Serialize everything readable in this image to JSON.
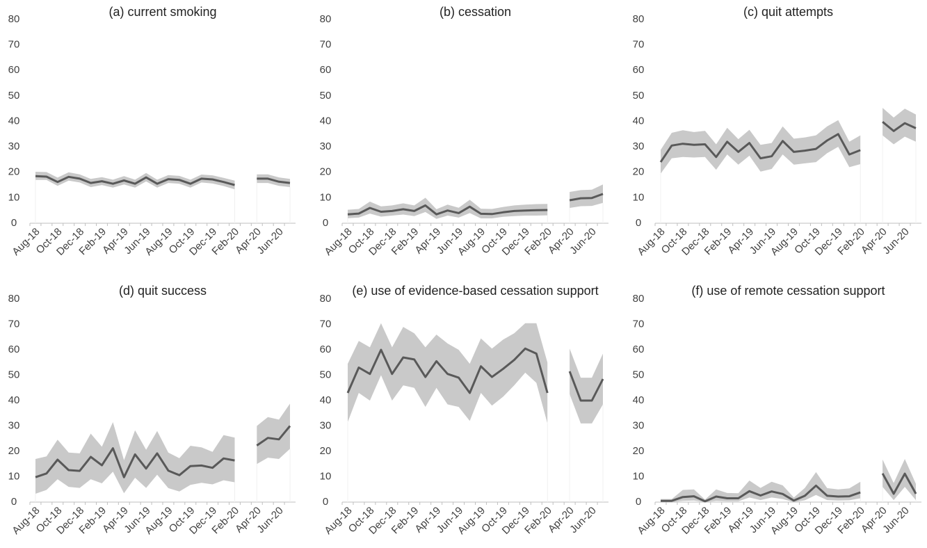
{
  "chart_data": [
    {
      "type": "line",
      "title": "(a) current smoking",
      "categories": [
        "Aug-18",
        null,
        "Oct-18",
        null,
        "Dec-18",
        null,
        "Feb-19",
        null,
        "Apr-19",
        null,
        "Jun-19",
        null,
        "Aug-19",
        null,
        "Oct-19",
        null,
        "Dec-19",
        null,
        "Feb-20",
        null,
        "Apr-20",
        null,
        "Jun-20",
        null
      ],
      "values": [
        18.5,
        18.3,
        16.2,
        18.2,
        17.5,
        15.8,
        16.5,
        15.5,
        16.8,
        15.5,
        18,
        15.5,
        17.3,
        17,
        15.5,
        17.5,
        17.2,
        16.2,
        15,
        null,
        17.5,
        17.5,
        16.3,
        15.8
      ],
      "lower": [
        17,
        17,
        14.7,
        16.7,
        16,
        14.2,
        15,
        14,
        15.2,
        14,
        16.4,
        14,
        15.8,
        15.5,
        14,
        16,
        15.6,
        14.6,
        13.3,
        null,
        15.8,
        15.8,
        14.7,
        14.2
      ],
      "upper": [
        20.2,
        20.1,
        17.9,
        20,
        19.2,
        17.4,
        18.1,
        17.1,
        18.5,
        17.1,
        19.7,
        17.1,
        18.9,
        18.6,
        17.1,
        19.1,
        18.8,
        17.8,
        16.7,
        null,
        19.2,
        19.2,
        18,
        17.4
      ],
      "ylim": [
        0,
        80
      ],
      "yticks": [
        0,
        10,
        20,
        30,
        40,
        50,
        60,
        70,
        80
      ],
      "color": "#595959",
      "band_color": "#c9c9c9"
    },
    {
      "type": "line",
      "title": "(b) cessation",
      "categories": [
        "Aug-18",
        null,
        "Oct-18",
        null,
        "Dec-18",
        null,
        "Feb-19",
        null,
        "Apr-19",
        null,
        "Jun-19",
        null,
        "Aug-19",
        null,
        "Oct-19",
        null,
        "Dec-19",
        null,
        "Feb-20",
        null,
        "Apr-20",
        null,
        "Jun-20",
        null
      ],
      "values": [
        3.5,
        3.8,
        6,
        4.5,
        4.8,
        5.5,
        4.8,
        7,
        3.5,
        5,
        4,
        6.5,
        3.7,
        3.6,
        4.3,
        4.8,
        5,
        5.1,
        5.2,
        null,
        9,
        9.8,
        9.9,
        11.5
      ],
      "lower": [
        2,
        2.2,
        3.8,
        2.6,
        3,
        3.4,
        2.8,
        4.4,
        1.7,
        3,
        2.2,
        4,
        1.9,
        1.9,
        2.5,
        2.8,
        3,
        3,
        3.1,
        null,
        6,
        6.7,
        6.8,
        8
      ],
      "upper": [
        5.3,
        5.6,
        8.5,
        6.6,
        7,
        7.8,
        7,
        10,
        5.5,
        7.3,
        6.1,
        9.2,
        5.7,
        5.6,
        6.4,
        7,
        7.3,
        7.5,
        7.6,
        null,
        12.3,
        13,
        13.2,
        15.2
      ],
      "ylim": [
        0,
        80
      ],
      "yticks": [
        0,
        10,
        20,
        30,
        40,
        50,
        60,
        70,
        80
      ],
      "color": "#595959",
      "band_color": "#c9c9c9"
    },
    {
      "type": "line",
      "title": "(c) quit attempts",
      "categories": [
        "Aug-18",
        null,
        "Oct-18",
        null,
        "Dec-18",
        null,
        "Feb-19",
        null,
        "Apr-19",
        null,
        "Jun-19",
        null,
        "Aug-19",
        null,
        "Oct-19",
        null,
        "Dec-19",
        null,
        "Feb-20",
        null,
        "Apr-20",
        null,
        "Jun-20",
        null
      ],
      "values": [
        24,
        30.5,
        31.2,
        30.8,
        31,
        26,
        32,
        28,
        31.5,
        25.5,
        26.3,
        32.3,
        28,
        28.5,
        29.2,
        32.5,
        35,
        27,
        28.7,
        null,
        39.8,
        36.2,
        39.3,
        37.3
      ],
      "lower": [
        19.5,
        25.5,
        26,
        25.8,
        26,
        21,
        27,
        23,
        26.5,
        20.3,
        21.3,
        27,
        23,
        23.5,
        24,
        27.5,
        30,
        22,
        23.2,
        null,
        34.5,
        31,
        34,
        32
      ],
      "upper": [
        28.8,
        35.5,
        36.5,
        35.8,
        36.3,
        31,
        37.5,
        33,
        36.7,
        30.8,
        31.5,
        38,
        33.2,
        33.7,
        34.5,
        38,
        40.5,
        32,
        34.5,
        null,
        45.3,
        41.5,
        45,
        42.7
      ],
      "ylim": [
        0,
        80
      ],
      "yticks": [
        0,
        10,
        20,
        30,
        40,
        50,
        60,
        70,
        80
      ],
      "color": "#595959",
      "band_color": "#c9c9c9"
    },
    {
      "type": "line",
      "title": "(d) quit success",
      "categories": [
        "Aug-18",
        null,
        "Oct-18",
        null,
        "Dec-18",
        null,
        "Feb-19",
        null,
        "Apr-19",
        null,
        "Jun-19",
        null,
        "Aug-19",
        null,
        "Oct-19",
        null,
        "Dec-19",
        null,
        "Feb-20",
        null,
        "Apr-20",
        null,
        "Jun-20",
        null
      ],
      "values": [
        9.8,
        11.3,
        16.7,
        12.6,
        12.3,
        17.8,
        14.5,
        21.2,
        9.8,
        18.8,
        13.2,
        19.2,
        12.4,
        10.6,
        14.2,
        14.4,
        13.5,
        17.2,
        16.4,
        null,
        22.3,
        25.3,
        24.7,
        30
      ],
      "lower": [
        3.3,
        4.8,
        9,
        6,
        5.6,
        9,
        7.4,
        12,
        3.5,
        9.6,
        5.6,
        10.8,
        5.5,
        4.2,
        6.8,
        7.6,
        7,
        8.6,
        7.8,
        null,
        15,
        17.5,
        17,
        21
      ],
      "upper": [
        17,
        18,
        24.6,
        19.5,
        19.2,
        27,
        21.8,
        31.5,
        16.5,
        28.3,
        20.6,
        28,
        19.5,
        17.3,
        22.2,
        21.6,
        19.8,
        26.4,
        25.4,
        null,
        30,
        33.5,
        32.5,
        38.8
      ],
      "ylim": [
        0,
        80
      ],
      "yticks": [
        0,
        10,
        20,
        30,
        40,
        50,
        60,
        70,
        80
      ],
      "color": "#595959",
      "band_color": "#c9c9c9"
    },
    {
      "type": "line",
      "title": "(e) use of evidence-based cessation support",
      "categories": [
        "Aug-18",
        null,
        "Oct-18",
        null,
        "Dec-18",
        null,
        "Feb-19",
        null,
        "Apr-19",
        null,
        "Jun-19",
        null,
        "Aug-19",
        null,
        "Oct-19",
        null,
        "Dec-19",
        null,
        "Feb-20",
        null,
        "Apr-20",
        null,
        "Jun-20",
        null
      ],
      "values": [
        43,
        53,
        50.5,
        60,
        50.5,
        57,
        56.2,
        49.3,
        55.5,
        50.5,
        49,
        43,
        53.5,
        49.3,
        52.5,
        56,
        60.5,
        58.5,
        43,
        null,
        51.5,
        40,
        40,
        48.5
      ],
      "lower": [
        31.5,
        43,
        40,
        50,
        40,
        46,
        45,
        37.5,
        45,
        38.5,
        37.5,
        32,
        43,
        38,
        41.5,
        46,
        51,
        47,
        31,
        null,
        42.5,
        31,
        31,
        38.5
      ],
      "upper": [
        54.5,
        63.5,
        61,
        70.5,
        61,
        69,
        66.5,
        61,
        66,
        62.5,
        60,
        54.5,
        64.5,
        60.5,
        64,
        66.5,
        70.5,
        70.5,
        55,
        null,
        60.5,
        49,
        49,
        58.5
      ],
      "ylim": [
        0,
        80
      ],
      "yticks": [
        0,
        10,
        20,
        30,
        40,
        50,
        60,
        70,
        80
      ],
      "color": "#595959",
      "band_color": "#c9c9c9"
    },
    {
      "type": "line",
      "title": "(f) use of remote cessation support",
      "categories": [
        "Aug-18",
        null,
        "Oct-18",
        null,
        "Dec-18",
        null,
        "Feb-19",
        null,
        "Apr-19",
        null,
        "Jun-19",
        null,
        "Aug-19",
        null,
        "Oct-19",
        null,
        "Dec-19",
        null,
        "Feb-20",
        null,
        "Apr-20",
        null,
        "Jun-20",
        null
      ],
      "values": [
        0.5,
        0.5,
        2,
        2.3,
        0.3,
        2.2,
        1.5,
        1.5,
        4.3,
        2.6,
        4.2,
        3.2,
        0.6,
        2.5,
        6.5,
        2.5,
        2.2,
        2.3,
        3.8,
        null,
        11.3,
        3.3,
        11.2,
        3.3
      ],
      "lower": [
        0,
        0,
        0.5,
        0.6,
        0,
        0.5,
        0.3,
        0.3,
        1.8,
        0.8,
        1.8,
        1.2,
        0,
        0.7,
        2.8,
        0.8,
        0.6,
        0.7,
        1.5,
        null,
        6,
        0.8,
        6,
        0.8
      ],
      "upper": [
        1.2,
        1.2,
        4.8,
        5,
        1,
        5,
        3.6,
        3.5,
        8.5,
        5.6,
        8,
        6.6,
        1.8,
        5.6,
        11.8,
        5.5,
        5,
        5.4,
        8,
        null,
        16.8,
        7.5,
        17,
        7.2
      ],
      "ylim": [
        0,
        80
      ],
      "yticks": [
        0,
        10,
        20,
        30,
        40,
        50,
        60,
        70,
        80
      ],
      "color": "#595959",
      "band_color": "#c9c9c9"
    }
  ]
}
